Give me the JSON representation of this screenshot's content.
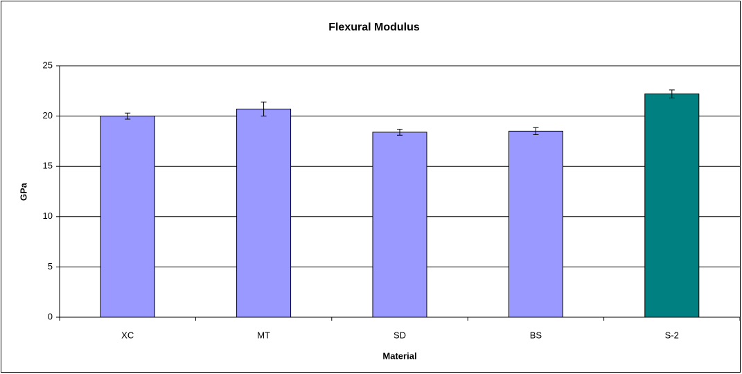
{
  "chart_data": {
    "type": "bar",
    "title": "Flexural Modulus",
    "x_label": "Material",
    "y_label": "GPa",
    "categories": [
      "XC",
      "MT",
      "SD",
      "BS",
      "S-2"
    ],
    "values": [
      20.0,
      20.7,
      18.4,
      18.5,
      22.2
    ],
    "errors": [
      0.3,
      0.7,
      0.3,
      0.35,
      0.4
    ],
    "colors": [
      "#9999ff",
      "#9999ff",
      "#9999ff",
      "#9999ff",
      "#008080"
    ],
    "ylim": [
      0,
      25
    ],
    "yticks": [
      0,
      5,
      10,
      15,
      20,
      25
    ],
    "grid": true
  }
}
